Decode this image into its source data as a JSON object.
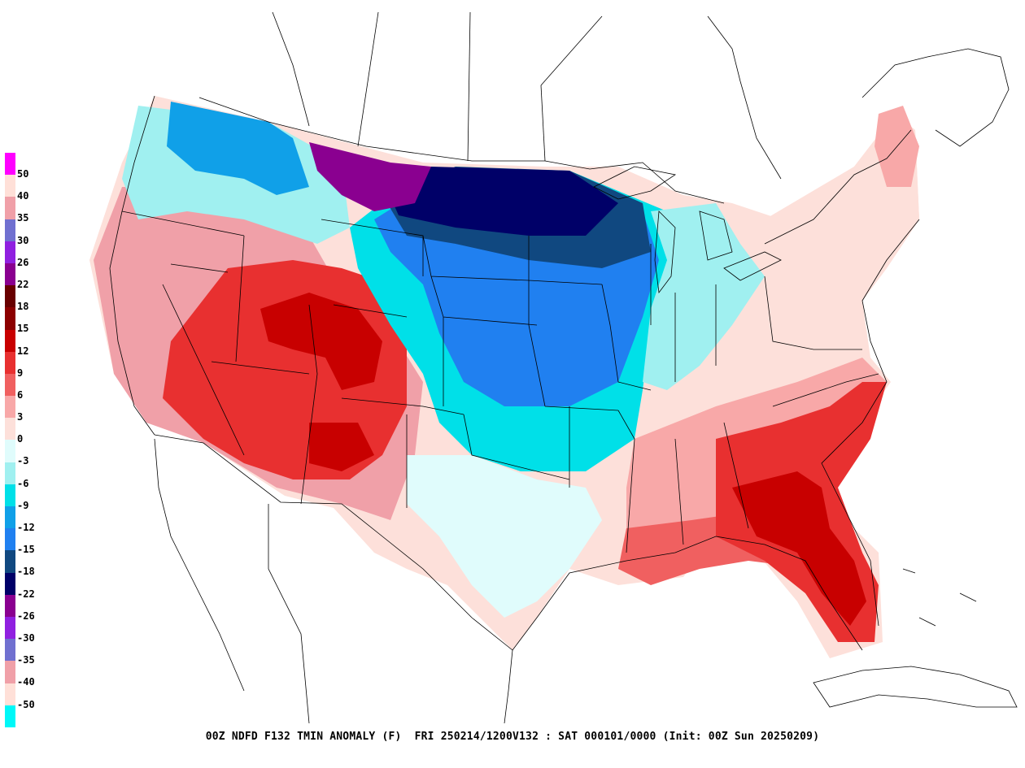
{
  "map": {
    "product": "00Z NDFD F132 TMIN ANOMALY (F)",
    "valid": "FRI 250214/1200V132 : SAT 000101/0000",
    "init": "(Init: 00Z Sun 20250209)",
    "footer": "00Z NDFD F132 TMIN ANOMALY (F)  FRI 250214/1200V132 : SAT 000101/0000 (Init: 00Z Sun 20250209)"
  },
  "legend": {
    "entries": [
      {
        "label": "50",
        "color": "#ff00ff"
      },
      {
        "label": "40",
        "color": "#ffe0d8"
      },
      {
        "label": "35",
        "color": "#f0a0a8"
      },
      {
        "label": "30",
        "color": "#7070d0"
      },
      {
        "label": "26",
        "color": "#9020e0"
      },
      {
        "label": "22",
        "color": "#8a0090"
      },
      {
        "label": "18",
        "color": "#680000"
      },
      {
        "label": "15",
        "color": "#8c0000"
      },
      {
        "label": "12",
        "color": "#c80000"
      },
      {
        "label": "9",
        "color": "#e83030"
      },
      {
        "label": "6",
        "color": "#f06060"
      },
      {
        "label": "3",
        "color": "#f8a8a8"
      },
      {
        "label": "0",
        "color": "#fde0da"
      },
      {
        "label": "-3",
        "color": "#e0fcfc"
      },
      {
        "label": "-6",
        "color": "#a0f0f0"
      },
      {
        "label": "-9",
        "color": "#00e0e8"
      },
      {
        "label": "-12",
        "color": "#10a0e8"
      },
      {
        "label": "-15",
        "color": "#2080f0"
      },
      {
        "label": "-18",
        "color": "#104880"
      },
      {
        "label": "-22",
        "color": "#000068"
      },
      {
        "label": "-26",
        "color": "#8a0090"
      },
      {
        "label": "-30",
        "color": "#9020e0"
      },
      {
        "label": "-35",
        "color": "#7070d0"
      },
      {
        "label": "-40",
        "color": "#f0a0a8"
      },
      {
        "label": "-50",
        "color": "#ffe0d8"
      },
      {
        "label": "",
        "color": "#00f8f8"
      }
    ]
  },
  "regions": [
    {
      "name": "pacific-northwest",
      "color": "#a0f0f0"
    },
    {
      "name": "northern-rockies",
      "color": "#10a0e8"
    },
    {
      "name": "northern-plains",
      "color": "#000068"
    },
    {
      "name": "montana-core",
      "color": "#8a0090"
    },
    {
      "name": "upper-midwest",
      "color": "#104880"
    },
    {
      "name": "central-plains",
      "color": "#2080f0"
    },
    {
      "name": "southern-plains",
      "color": "#00e0e8"
    },
    {
      "name": "ohio-valley",
      "color": "#a0f0f0"
    },
    {
      "name": "great-basin",
      "color": "#f0a0a8"
    },
    {
      "name": "four-corners",
      "color": "#e83030"
    },
    {
      "name": "colorado-core",
      "color": "#c80000"
    },
    {
      "name": "texas",
      "color": "#e0fcfc"
    },
    {
      "name": "gulf-coast",
      "color": "#f06060"
    },
    {
      "name": "florida-georgia",
      "color": "#e83030"
    },
    {
      "name": "florida-peninsula",
      "color": "#c80000"
    },
    {
      "name": "northeast",
      "color": "#fde0da"
    },
    {
      "name": "southeast",
      "color": "#f8a8a8"
    }
  ]
}
